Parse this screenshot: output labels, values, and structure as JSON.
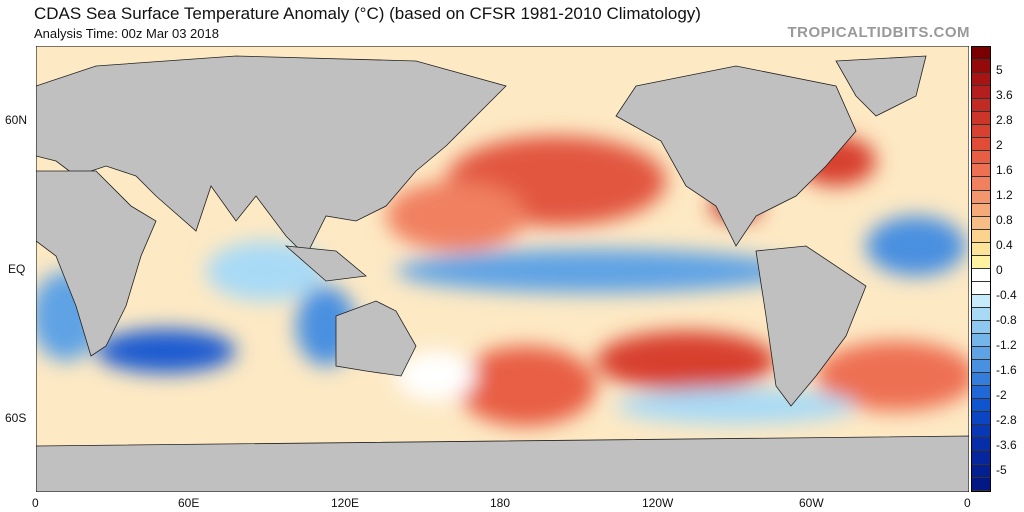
{
  "header": {
    "title": "CDAS Sea Surface Temperature Anomaly (°C) (based on CFSR 1981-2010 Climatology)",
    "analysis_time": "Analysis Time: 00z Mar 03 2018",
    "brand": "TROPICALTIDBITS.COM"
  },
  "map": {
    "x_ticks": [
      "0",
      "60E",
      "120E",
      "180",
      "120W",
      "60W",
      "0"
    ],
    "y_ticks": [
      "60N",
      "EQ",
      "60S"
    ],
    "colors": {
      "land": "#c0c0c0",
      "warm": "#e0503a",
      "cool": "#3f8be0",
      "neutral": "#ffffff"
    }
  },
  "colorbar": {
    "labels": [
      "5",
      "3.6",
      "2.8",
      "2",
      "1.6",
      "1.2",
      "0.8",
      "0.4",
      "0",
      "-0.4",
      "-0.8",
      "-1.2",
      "-1.6",
      "-2",
      "-2.8",
      "-3.6",
      "-5"
    ],
    "bins": [
      "#7a0000",
      "#940a0a",
      "#a81414",
      "#b51e1e",
      "#c22a24",
      "#cc3528",
      "#d8402f",
      "#e04c36",
      "#e85e44",
      "#ee7052",
      "#f08060",
      "#f3956d",
      "#f6aa7a",
      "#f8bd85",
      "#fbd28e",
      "#fde398",
      "#fff2a0",
      "#ffffff",
      "#ffffff",
      "#c6ecfb",
      "#a8daf6",
      "#8ec8f0",
      "#75b6ea",
      "#5ea3e5",
      "#4890e0",
      "#347ddb",
      "#2068d6",
      "#0f55d0",
      "#0a46c4",
      "#0838b6",
      "#062ea8",
      "#05269c",
      "#041f90",
      "#031884"
    ]
  }
}
